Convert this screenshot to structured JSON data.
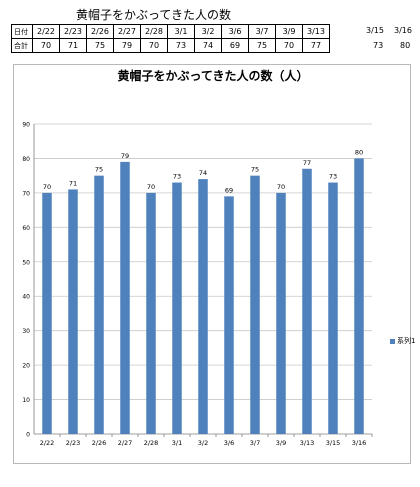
{
  "heading": "黄帽子をかぶってきた人の数",
  "table": {
    "row1_label": "日付",
    "row2_label": "合計",
    "dates": [
      "2/22",
      "2/23",
      "2/26",
      "2/27",
      "2/28",
      "3/1",
      "3/2",
      "3/6",
      "3/7",
      "3/9",
      "3/13",
      "3/15",
      "3/16"
    ],
    "totals": [
      "70",
      "71",
      "75",
      "79",
      "70",
      "73",
      "74",
      "69",
      "75",
      "70",
      "77",
      "73",
      "80"
    ]
  },
  "chart_data": {
    "type": "bar",
    "title": "黄帽子をかぶってきた人の数（人）",
    "categories": [
      "2/22",
      "2/23",
      "2/26",
      "2/27",
      "2/28",
      "3/1",
      "3/2",
      "3/6",
      "3/7",
      "3/9",
      "3/13",
      "3/15",
      "3/16"
    ],
    "series": [
      {
        "name": "系列1",
        "values": [
          70,
          71,
          75,
          79,
          70,
          73,
          74,
          69,
          75,
          70,
          77,
          73,
          80
        ],
        "color": "#4f81bd"
      }
    ],
    "ylim": [
      0,
      90
    ],
    "yticks": [
      0,
      10,
      20,
      30,
      40,
      50,
      60,
      70,
      80,
      90
    ],
    "grid": true,
    "data_labels": true,
    "legend_position": "right"
  }
}
